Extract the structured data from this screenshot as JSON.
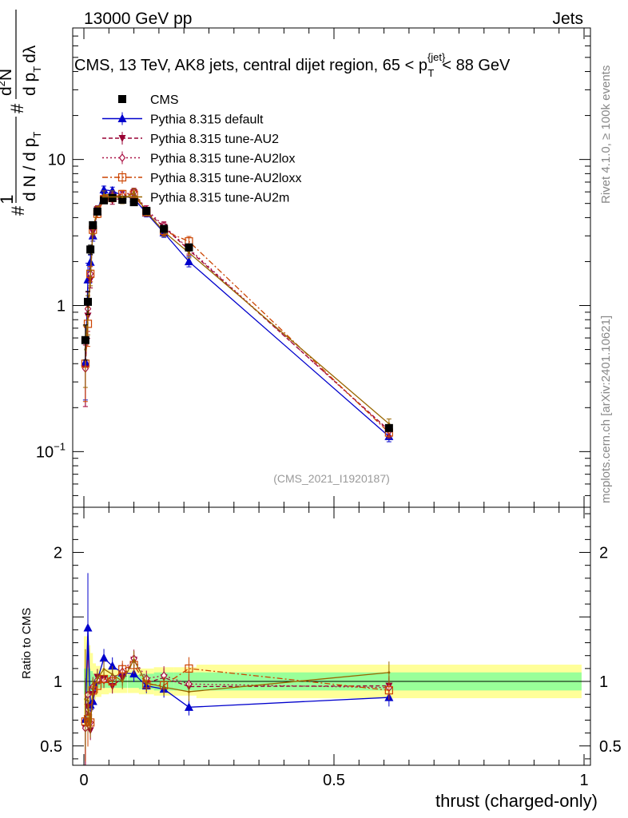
{
  "header": {
    "left": "13000 GeV pp",
    "right": "Jets"
  },
  "side_text": {
    "rivet": "Rivet 4.1.0, ≥ 100k events",
    "mcplots": "mcplots.cern.ch [arXiv:2401.10621]"
  },
  "watermark": "(CMS_2021_I1920187)",
  "chart_data": {
    "type": "line",
    "title": "CMS, 13 TeV, AK8 jets, central dijet region, 65 < pT {jet} < 88 GeV",
    "title_parts": {
      "main": "CMS, 13 TeV, AK8 jets, central dijet region, 65 <",
      "p": "p",
      "sub": "T",
      "sup": "{jet}",
      "end": "< 88 GeV"
    },
    "xlabel": "thrust (charged-only)",
    "ylabel": "1 / (dN / dpT) · d²N / (dpT dλ)",
    "ylabel_parts": {
      "left": "#",
      "one": "1",
      "den": "d N / d p",
      "den_sub": "T",
      "hash": "#",
      "num": "d",
      "num_sup": "2",
      "num_end": "N",
      "num_hash": "#",
      "den2": "d p",
      "den2_sub": "T",
      "den2_end": "dλ"
    },
    "ratio_ylabel": "Ratio to CMS",
    "xlim": [
      -0.02,
      1.0
    ],
    "ylim_main": [
      0.04,
      80
    ],
    "ylog": true,
    "ylim_ratio": [
      0.35,
      2.35
    ],
    "x_ticks": [
      "0",
      "0.5",
      "1"
    ],
    "x_tick_values": [
      0,
      0.5,
      1
    ],
    "y_ticks_main": [
      {
        "value": 0.1,
        "label": "10",
        "sup": "−1"
      },
      {
        "value": 1,
        "label": "1",
        "sup": ""
      },
      {
        "value": 10,
        "label": "10",
        "sup": ""
      }
    ],
    "y_ticks_ratio": [
      {
        "value": 0.5,
        "label": "0.5"
      },
      {
        "value": 1,
        "label": "1"
      },
      {
        "value": 2,
        "label": "2"
      }
    ],
    "x": [
      0.003,
      0.008,
      0.013,
      0.018,
      0.027,
      0.04,
      0.057,
      0.077,
      0.1,
      0.125,
      0.16,
      0.21,
      0.61
    ],
    "series": [
      {
        "name": "CMS",
        "color": "#000000",
        "marker": "square",
        "dash": "",
        "values": [
          0.58,
          1.06,
          2.42,
          3.55,
          4.4,
          5.25,
          5.45,
          5.3,
          5.1,
          4.45,
          3.35,
          2.5,
          0.145
        ]
      },
      {
        "name": "Pythia 8.315 default",
        "color": "#0000cc",
        "marker": "triangle-up",
        "dash": "",
        "values": [
          0.41,
          1.5,
          1.98,
          3.0,
          4.45,
          6.2,
          6.1,
          5.65,
          5.4,
          4.3,
          3.15,
          2.0,
          0.127
        ]
      },
      {
        "name": "Pythia 8.315 tune-AU2",
        "color": "#990033",
        "marker": "triangle-down",
        "dash": "5,3",
        "values": [
          0.37,
          0.85,
          1.5,
          3.2,
          4.55,
          5.35,
          5.25,
          5.45,
          5.95,
          4.4,
          3.45,
          2.4,
          0.14
        ]
      },
      {
        "name": "Pythia 8.315 tune-AU2lox",
        "color": "#aa1144",
        "marker": "diamond-open",
        "dash": "2,3",
        "values": [
          0.37,
          0.95,
          1.65,
          3.4,
          4.45,
          5.3,
          5.6,
          5.7,
          6.0,
          4.55,
          3.5,
          2.45,
          0.138
        ]
      },
      {
        "name": "Pythia 8.315 tune-AU2loxx",
        "color": "#cc4400",
        "marker": "square-open",
        "dash": "7,3,2,3",
        "values": [
          0.4,
          0.75,
          1.65,
          3.3,
          4.25,
          5.35,
          5.45,
          5.8,
          5.75,
          4.35,
          3.25,
          2.75,
          0.135
        ]
      },
      {
        "name": "Pythia 8.315 tune-AU2m",
        "color": "#996600",
        "marker": "none",
        "dash": "",
        "values": [
          0.5,
          0.9,
          1.55,
          3.35,
          4.5,
          5.75,
          5.75,
          5.3,
          5.95,
          4.4,
          3.2,
          2.3,
          0.155
        ]
      }
    ],
    "legend_position": "top-left"
  }
}
